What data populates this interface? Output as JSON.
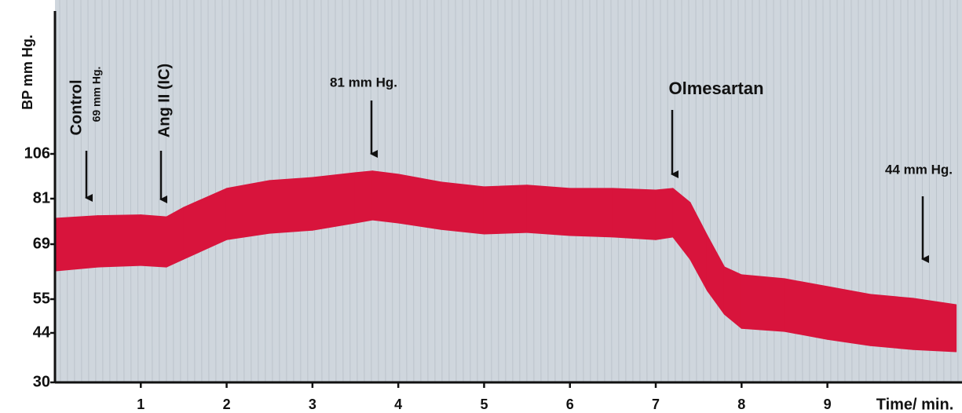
{
  "chart_data": {
    "type": "band",
    "y_label": "BP mm Hg.",
    "x_label": "Time/ min.",
    "annotations": [
      "Control",
      "69 mm Hg.",
      "Ang II (IC)",
      "81 mm Hg.",
      "Olmesartan",
      "44 mm Hg."
    ],
    "color": "#d8143c",
    "x": [
      0,
      0.5,
      1,
      1.3,
      1.5,
      2,
      2.5,
      3,
      3.5,
      3.7,
      4,
      4.5,
      5,
      5.5,
      6,
      6.5,
      7,
      7.2,
      7.4,
      7.6,
      7.8,
      8,
      8.5,
      9,
      9.5,
      10,
      10.5
    ],
    "y_upper": [
      75.8,
      76.5,
      76.7,
      76.2,
      78.7,
      86.7,
      91.1,
      92.8,
      95.5,
      96.4,
      94.6,
      90.2,
      87.6,
      88.5,
      86.7,
      86.7,
      85.8,
      86.7,
      80.0,
      71.3,
      63.2,
      61.2,
      60.2,
      58.2,
      56.2,
      55.2,
      53.2
    ],
    "y_lower": [
      62.2,
      63.2,
      63.6,
      63.2,
      65.2,
      70.2,
      71.9,
      72.7,
      74.6,
      75.4,
      74.6,
      72.9,
      71.7,
      72.1,
      71.3,
      70.9,
      70.2,
      70.9,
      65.2,
      57.2,
      50.1,
      45.5,
      44.5,
      42.2,
      40.4,
      39.3,
      38.7
    ],
    "xlim": [
      0,
      10.55
    ],
    "xticks": [
      1,
      2,
      3,
      4,
      5,
      6,
      7,
      8,
      9
    ],
    "yticks": [
      30,
      44,
      55,
      69,
      81,
      106
    ]
  }
}
